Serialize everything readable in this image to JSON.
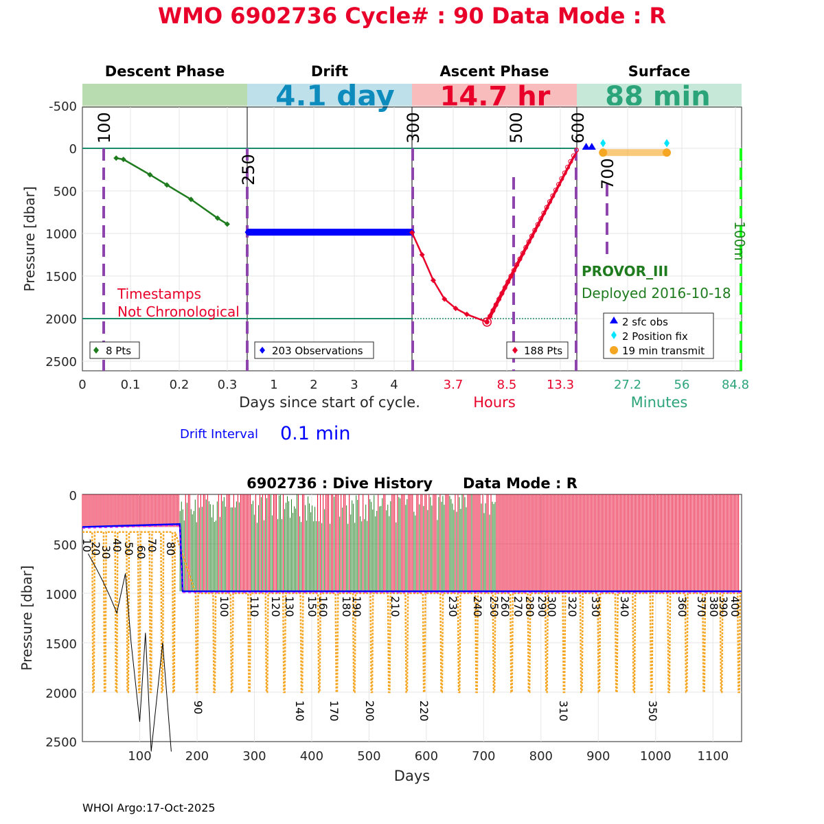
{
  "title": "WMO 6902736   Cycle# : 90   Data Mode : R",
  "colors": {
    "title": "#e8002a",
    "descent": "#1e7b1e",
    "drift": "#0000ff",
    "ascent": "#e8002a",
    "phase_line": "#8e44ad",
    "ref_line": "#1a8a6a",
    "surface_fix": "#00e5ff",
    "transmit": "#f5a623",
    "float_type": "#1e7b1e",
    "end_line": "#1aff1a"
  },
  "top": {
    "phases": [
      {
        "name": "Descent Phase",
        "duration": "",
        "band_color": "#b9dbb0",
        "dur_color": "#1e7b1e"
      },
      {
        "name": "Drift",
        "duration": "4.1 day",
        "band_color": "#bde0ea",
        "dur_color": "#0d8bbd"
      },
      {
        "name": "Ascent Phase",
        "duration": "14.7 hr",
        "band_color": "#f8bcbc",
        "dur_color": "#e8002a"
      },
      {
        "name": "Surface",
        "duration": "88 min",
        "band_color": "#c5e8d8",
        "dur_color": "#2ca47a"
      }
    ],
    "ylabel": "Pressure [dbar]",
    "yticks": [
      "-500",
      "0",
      "500",
      "1000",
      "1500",
      "2000",
      "2500"
    ],
    "xlabel_days": "Days since start of cycle.",
    "xlabel_hours": "Hours",
    "xlabel_minutes": "Minutes",
    "xticks_descent": [
      "0",
      "0.1",
      "0.2",
      "0.3"
    ],
    "xticks_drift": [
      "1",
      "2",
      "3",
      "4"
    ],
    "xticks_ascent": [
      "3.7",
      "8.5",
      "13.3"
    ],
    "xticks_surface": [
      "27.2",
      "56",
      "84.8"
    ],
    "phase_markers": [
      "100",
      "250",
      "300",
      "500",
      "600",
      "700"
    ],
    "end_marker": "100m",
    "note_line1": "Timestamps",
    "note_line2": "Not Chronological",
    "float_type": "PROVOR_III",
    "deployed": "Deployed 2016-10-18",
    "legend_descent": "8 Pts",
    "legend_drift": "203 Observations",
    "legend_ascent": "188 Pts",
    "legend_surface": [
      "2 sfc obs",
      "2 Position fix",
      "19 min transmit"
    ],
    "drift_interval_label": "Drift Interval",
    "drift_interval_value": "0.1 min"
  },
  "bottom": {
    "title": "6902736 : Dive History      Data Mode : R",
    "xlabel": "Days",
    "ylabel": "Pressure [dbar]",
    "xticks": [
      "100",
      "200",
      "300",
      "400",
      "500",
      "600",
      "700",
      "800",
      "900",
      "1000",
      "1100"
    ],
    "yticks": [
      "0",
      "500",
      "1000",
      "1500",
      "2000",
      "2500"
    ],
    "cycle_labels_upper": [
      "10",
      "20",
      "30",
      "40",
      "50",
      "60",
      "70",
      "80"
    ],
    "cycle_labels_mid": [
      "100",
      "110",
      "120",
      "130",
      "150",
      "160",
      "180",
      "190",
      "210",
      "230",
      "240",
      "250",
      "260",
      "270",
      "280",
      "290",
      "300",
      "320",
      "330",
      "340",
      "360",
      "370",
      "380",
      "390",
      "400"
    ],
    "cycle_labels_low": [
      "90",
      "140",
      "170",
      "200",
      "220",
      "310",
      "350"
    ]
  },
  "footer": "WHOI Argo:17-Oct-2025",
  "chart_data": [
    {
      "type": "line",
      "title": "WMO 6902736   Cycle# : 90   Data Mode : R",
      "ylabel": "Pressure [dbar]",
      "ylim": [
        2600,
        -750
      ],
      "series": [
        {
          "name": "8 Pts",
          "x_days": [
            0.07,
            0.085,
            0.14,
            0.175,
            0.225,
            0.28,
            0.3
          ],
          "y": [
            115,
            130,
            310,
            430,
            600,
            820,
            890
          ]
        },
        {
          "name": "203 Observations",
          "x_days": [
            0.35,
            4.45
          ],
          "y": [
            985,
            985
          ]
        },
        {
          "name": "188 Pts",
          "x_hours": [
            0,
            0.9,
            1.9,
            2.9,
            3.9,
            4.9,
            6.7,
            14.7
          ],
          "y": [
            990,
            1250,
            1550,
            1770,
            1880,
            1950,
            2040,
            20
          ]
        },
        {
          "name": "2 sfc obs",
          "x_minutes": [
            5,
            8
          ],
          "y": [
            0,
            0
          ]
        },
        {
          "name": "2 Position fix",
          "x_minutes": [
            14,
            48
          ],
          "y": [
            -60,
            -60
          ]
        },
        {
          "name": "19 min transmit",
          "x_minutes": [
            14,
            48
          ],
          "y": [
            50,
            50
          ]
        }
      ]
    },
    {
      "type": "line",
      "title": "6902736 : Dive History      Data Mode : R",
      "xlabel": "Days",
      "ylabel": "Pressure [dbar]",
      "xlim": [
        0,
        1150
      ],
      "ylim": [
        2500,
        0
      ],
      "series": [
        {
          "name": "drift pressure",
          "x": [
            0,
            170,
            175,
            1150
          ],
          "y": [
            330,
            300,
            980,
            980
          ]
        }
      ]
    }
  ]
}
